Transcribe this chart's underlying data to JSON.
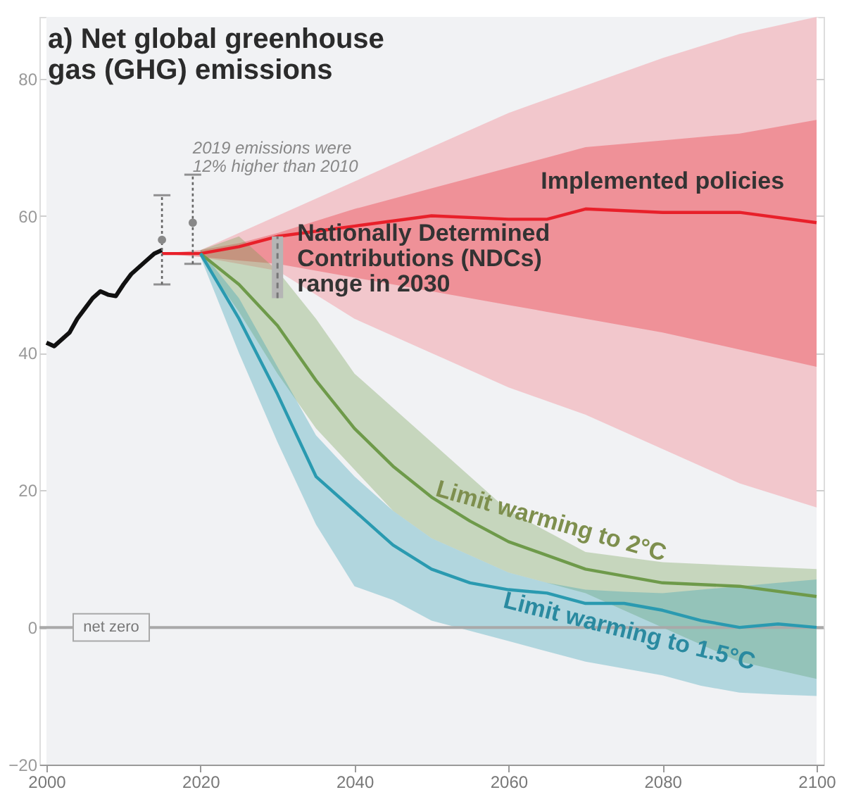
{
  "chart_data": {
    "type": "line",
    "title": "a) Net global greenhouse gas (GHG) emissions",
    "xlim": [
      2000,
      2100
    ],
    "xticks": [
      2000,
      2020,
      2040,
      2060,
      2080,
      2100
    ],
    "ylim": [
      -20,
      89
    ],
    "yticks": [
      {
        "value": -20,
        "label": "−20"
      },
      0,
      20,
      40,
      60,
      80
    ],
    "grid": true,
    "marker": "none",
    "line_style": "solid",
    "ref_lines": [
      {
        "axis": "y",
        "value": 0,
        "label": "net zero",
        "color": "#a9a9a9"
      }
    ],
    "annotations": [
      {
        "text": "2019 emissions were 12% higher than 2010",
        "x": 2019,
        "y": 66
      }
    ],
    "series": [
      {
        "type": "line",
        "color": "#111111",
        "x": [
          2000,
          2001,
          2002,
          2003,
          2004,
          2005,
          2006,
          2007,
          2008,
          2009,
          2010,
          2011,
          2012,
          2013,
          2014,
          2015
        ],
        "values": [
          41.5,
          41,
          42,
          43,
          45,
          46.5,
          48,
          49,
          48.5,
          48.3,
          50,
          51.5,
          52.5,
          53.5,
          54.5,
          55
        ]
      },
      {
        "type": "line",
        "color": "#f2bcc2",
        "x": [
          2020,
          2030,
          2040,
          2050,
          2060,
          2070,
          2080,
          2090,
          2100
        ],
        "values": [
          null,
          null,
          null,
          null,
          null,
          null,
          null,
          null,
          null
        ],
        "lower": [
          54,
          52,
          45,
          40,
          35,
          31,
          26,
          21,
          17.5
        ],
        "upper": [
          55,
          60,
          65,
          70,
          75,
          79,
          83,
          86.5,
          89
        ]
      },
      {
        "type": "line",
        "name": "Implemented policies",
        "color": "#e8202a",
        "x": [
          2015,
          2020,
          2025,
          2030,
          2040,
          2050,
          2060,
          2065,
          2070,
          2080,
          2090,
          2100
        ],
        "values": [
          54.5,
          54.5,
          55.5,
          57,
          58.5,
          60,
          59.5,
          59.5,
          61,
          60.5,
          60.5,
          59
        ],
        "lower": [
          54.5,
          54,
          53.5,
          53,
          51,
          49,
          47,
          46,
          45,
          43,
          40.5,
          38
        ],
        "upper": [
          54.5,
          55,
          56,
          57.5,
          61,
          64,
          67,
          68.5,
          70,
          71,
          72,
          74
        ]
      },
      {
        "type": "line",
        "name": "Limit warming to 2°C",
        "color": "#6e9a4a",
        "x": [
          2020,
          2025,
          2030,
          2035,
          2040,
          2045,
          2050,
          2055,
          2060,
          2070,
          2080,
          2090,
          2100
        ],
        "values": [
          54.5,
          50,
          44,
          36,
          29,
          23.5,
          19,
          15.5,
          12.5,
          8.5,
          6.5,
          6,
          4.5
        ],
        "lower": [
          54,
          46,
          37,
          29,
          23,
          17,
          13,
          10.5,
          8,
          5,
          0,
          -5,
          -7.5
        ],
        "upper": [
          55,
          57,
          52,
          45,
          37,
          32,
          27,
          22,
          17,
          11,
          9.5,
          9,
          8.5
        ]
      },
      {
        "type": "line",
        "name": "Limit warming to 1.5°C",
        "color": "#2a9ab0",
        "x": [
          2020,
          2025,
          2030,
          2035,
          2040,
          2045,
          2050,
          2055,
          2060,
          2065,
          2070,
          2075,
          2080,
          2085,
          2090,
          2095,
          2100
        ],
        "values": [
          54.5,
          45,
          34,
          22,
          17,
          12,
          8.5,
          6.5,
          5.5,
          5,
          3.5,
          3.5,
          2.5,
          1,
          0,
          0.5,
          0
        ],
        "lower": [
          54,
          40,
          27,
          15,
          6,
          4,
          1,
          -0.5,
          -2,
          -3.5,
          -5,
          -6,
          -7,
          -8.5,
          -9.5,
          -9.8,
          -10
        ],
        "upper": [
          55,
          48,
          38,
          28,
          22,
          17,
          13,
          10.5,
          8,
          6.5,
          5.5,
          5.2,
          5,
          5.5,
          6,
          6.5,
          7
        ]
      },
      {
        "type": "scatter",
        "color": "#888888",
        "marker": "circle",
        "line_style": "dotted",
        "x": [
          2015,
          2019
        ],
        "values": [
          56.5,
          59
        ],
        "errors": [
          [
            50,
            63
          ],
          [
            53,
            66
          ]
        ]
      },
      {
        "type": "bar",
        "name": "Nationally Determined Contributions (NDCs) range in 2030",
        "color": "#b5b5b5",
        "x": [
          2030
        ],
        "base": [
          48
        ],
        "values": [
          9
        ]
      }
    ]
  }
}
